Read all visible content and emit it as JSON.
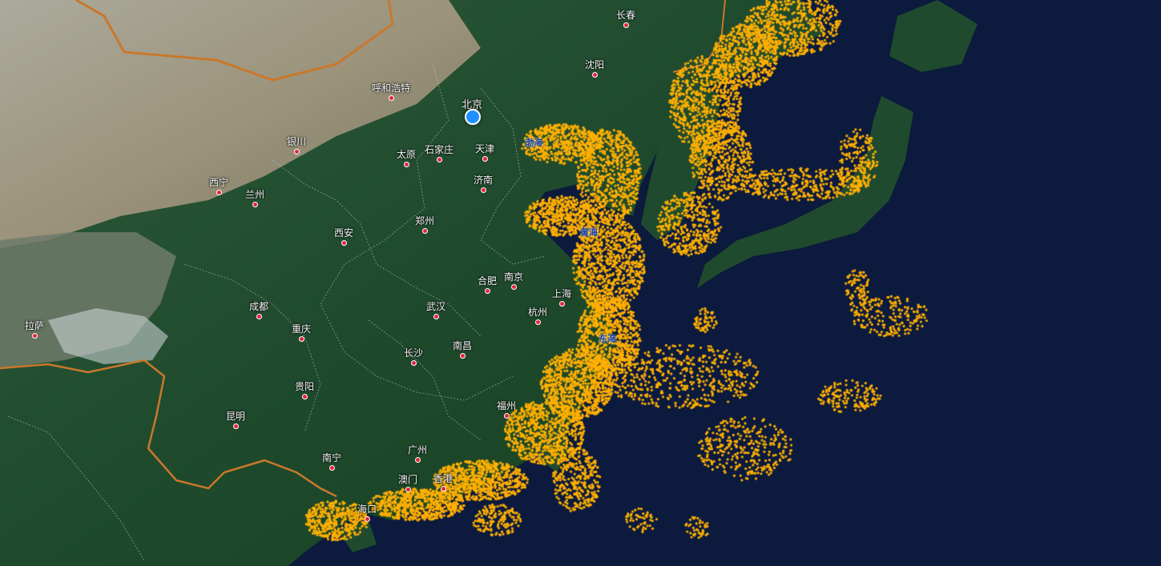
{
  "map": {
    "colors": {
      "ocean": "#0b1a3d",
      "vessel_dots": "#ffb000",
      "border": "#c9782b",
      "province_line": "#cfd8dc",
      "city_marker": "#e6233a",
      "capital_marker": "#1e90ff"
    },
    "icons": {
      "city": "red-dot-icon",
      "capital": "blue-circle-icon"
    },
    "capital": {
      "name": "北京"
    },
    "cities": [
      {
        "name": "长春"
      },
      {
        "name": "沈阳"
      },
      {
        "name": "呼和浩特"
      },
      {
        "name": "银川"
      },
      {
        "name": "太原"
      },
      {
        "name": "石家庄"
      },
      {
        "name": "天津"
      },
      {
        "name": "西宁"
      },
      {
        "name": "兰州"
      },
      {
        "name": "济南"
      },
      {
        "name": "郑州"
      },
      {
        "name": "西安"
      },
      {
        "name": "合肥"
      },
      {
        "name": "南京"
      },
      {
        "name": "上海"
      },
      {
        "name": "成都"
      },
      {
        "name": "武汉"
      },
      {
        "name": "杭州"
      },
      {
        "name": "拉萨"
      },
      {
        "name": "重庆"
      },
      {
        "name": "南昌"
      },
      {
        "name": "长沙"
      },
      {
        "name": "贵阳"
      },
      {
        "name": "福州"
      },
      {
        "name": "昆明"
      },
      {
        "name": "南宁"
      },
      {
        "name": "广州"
      },
      {
        "name": "澳门"
      },
      {
        "name": "香港"
      },
      {
        "name": "海口"
      }
    ],
    "seas": [
      {
        "name": "渤海"
      },
      {
        "name": "黄海"
      },
      {
        "name": "东海"
      }
    ]
  }
}
